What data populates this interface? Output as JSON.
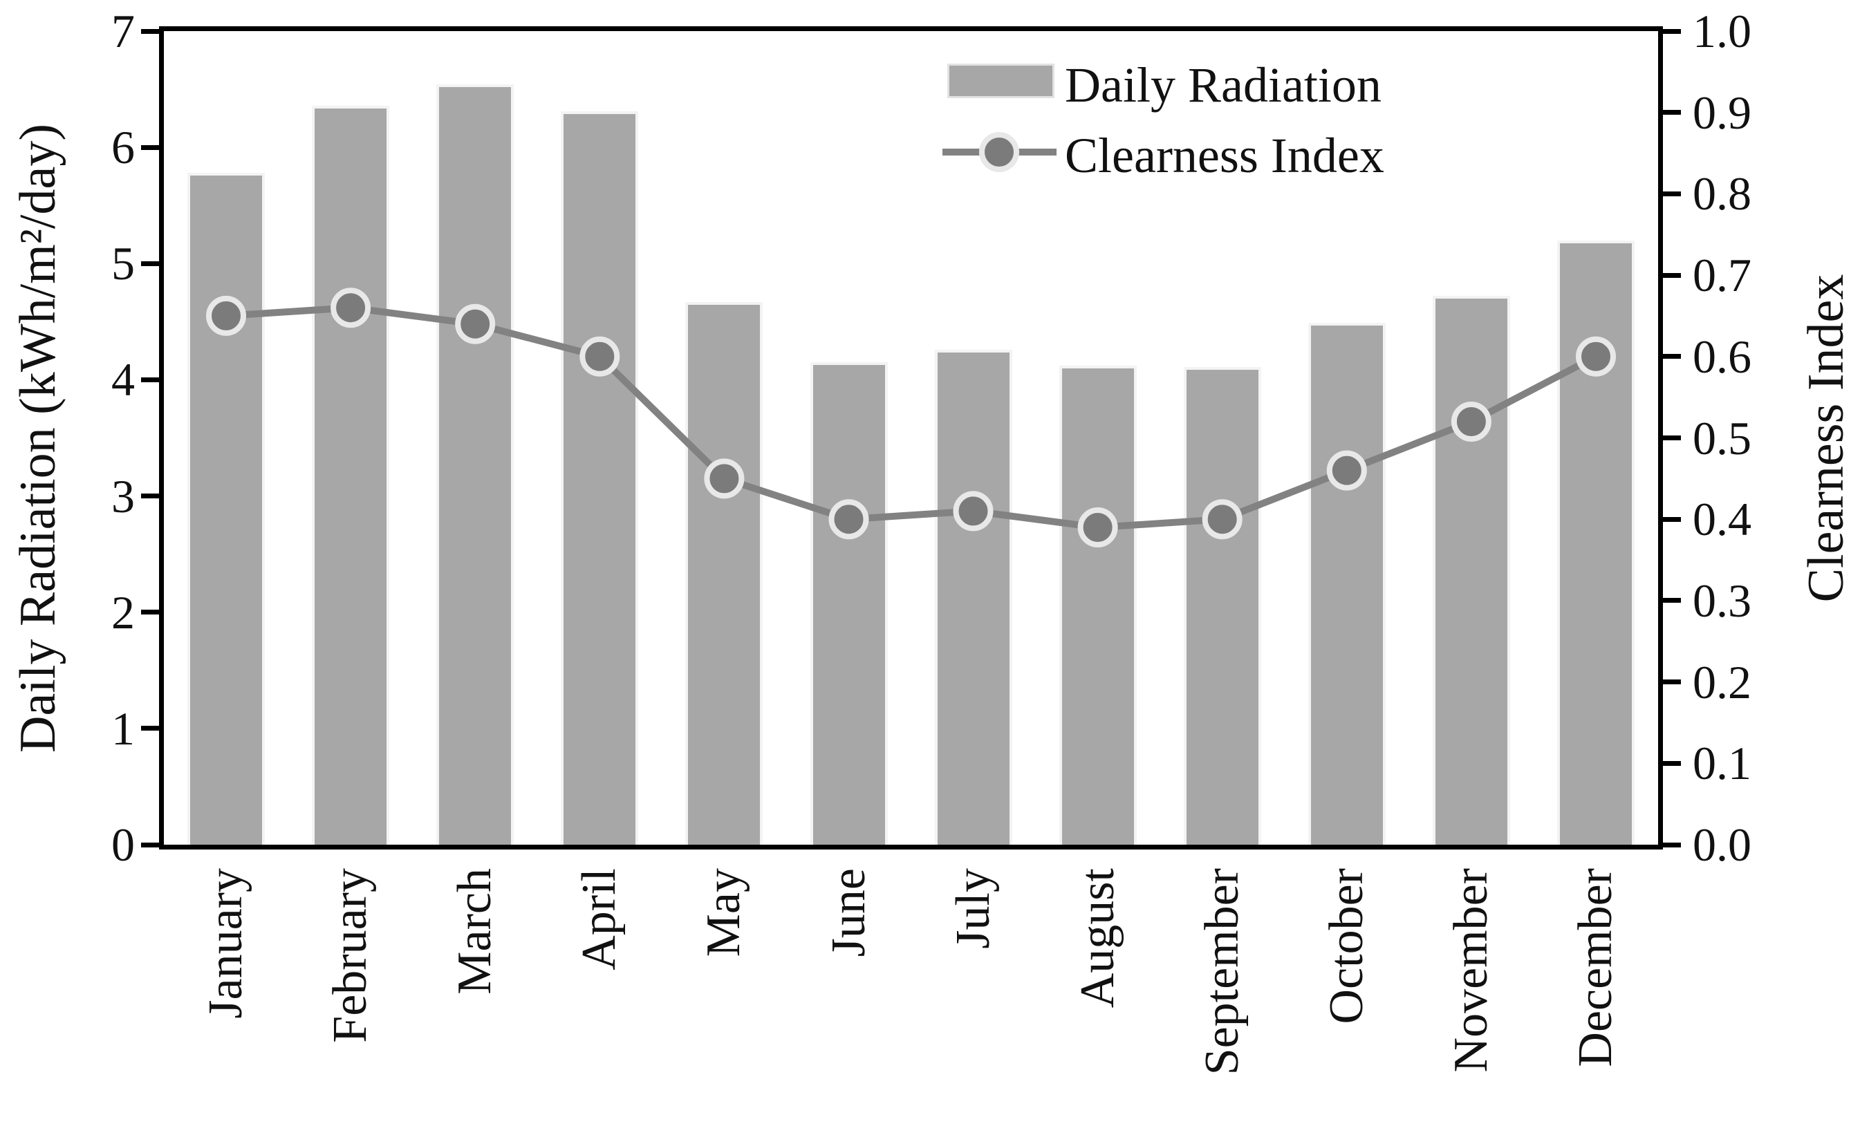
{
  "chart_data": {
    "type": "bar+line",
    "title": "",
    "categories": [
      "January",
      "February",
      "March",
      "April",
      "May",
      "June",
      "July",
      "August",
      "September",
      "October",
      "November",
      "December"
    ],
    "series": [
      {
        "name": "Daily Radiation",
        "type": "bar",
        "axis": "left",
        "values": [
          5.78,
          6.36,
          6.54,
          6.31,
          4.67,
          4.15,
          4.26,
          4.12,
          4.11,
          4.49,
          4.72,
          5.2
        ]
      },
      {
        "name": "Clearness Index",
        "type": "line",
        "axis": "right",
        "values": [
          0.65,
          0.66,
          0.64,
          0.6,
          0.45,
          0.4,
          0.41,
          0.39,
          0.4,
          0.46,
          0.52,
          0.6
        ]
      }
    ],
    "left_axis": {
      "label": "Daily Radiation (kWh/m²/day)",
      "min": 0,
      "max": 7,
      "tick_step": 1,
      "tick_labels": [
        "7",
        "6",
        "5",
        "4",
        "3",
        "2",
        "1",
        "0"
      ]
    },
    "right_axis": {
      "label": "Clearness Index",
      "min": 0.0,
      "max": 1.0,
      "tick_step": 0.1,
      "tick_labels": [
        "1.0",
        "0.9",
        "0.8",
        "0.7",
        "0.6",
        "0.5",
        "0.4",
        "0.3",
        "0.2",
        "0.1",
        "0.0"
      ]
    },
    "legend": {
      "position": "top-right",
      "items": [
        "Daily Radiation",
        "Clearness Index"
      ]
    },
    "grid": "off",
    "colors": {
      "background": "#ffffff",
      "bar": "#a7a7a7",
      "bar_border": "#f3f3f3",
      "line": "#828282",
      "marker_fill": "#7b7b7b",
      "marker_ring": "#e8e8e8",
      "axis": "#000000",
      "text": "#111111"
    }
  }
}
